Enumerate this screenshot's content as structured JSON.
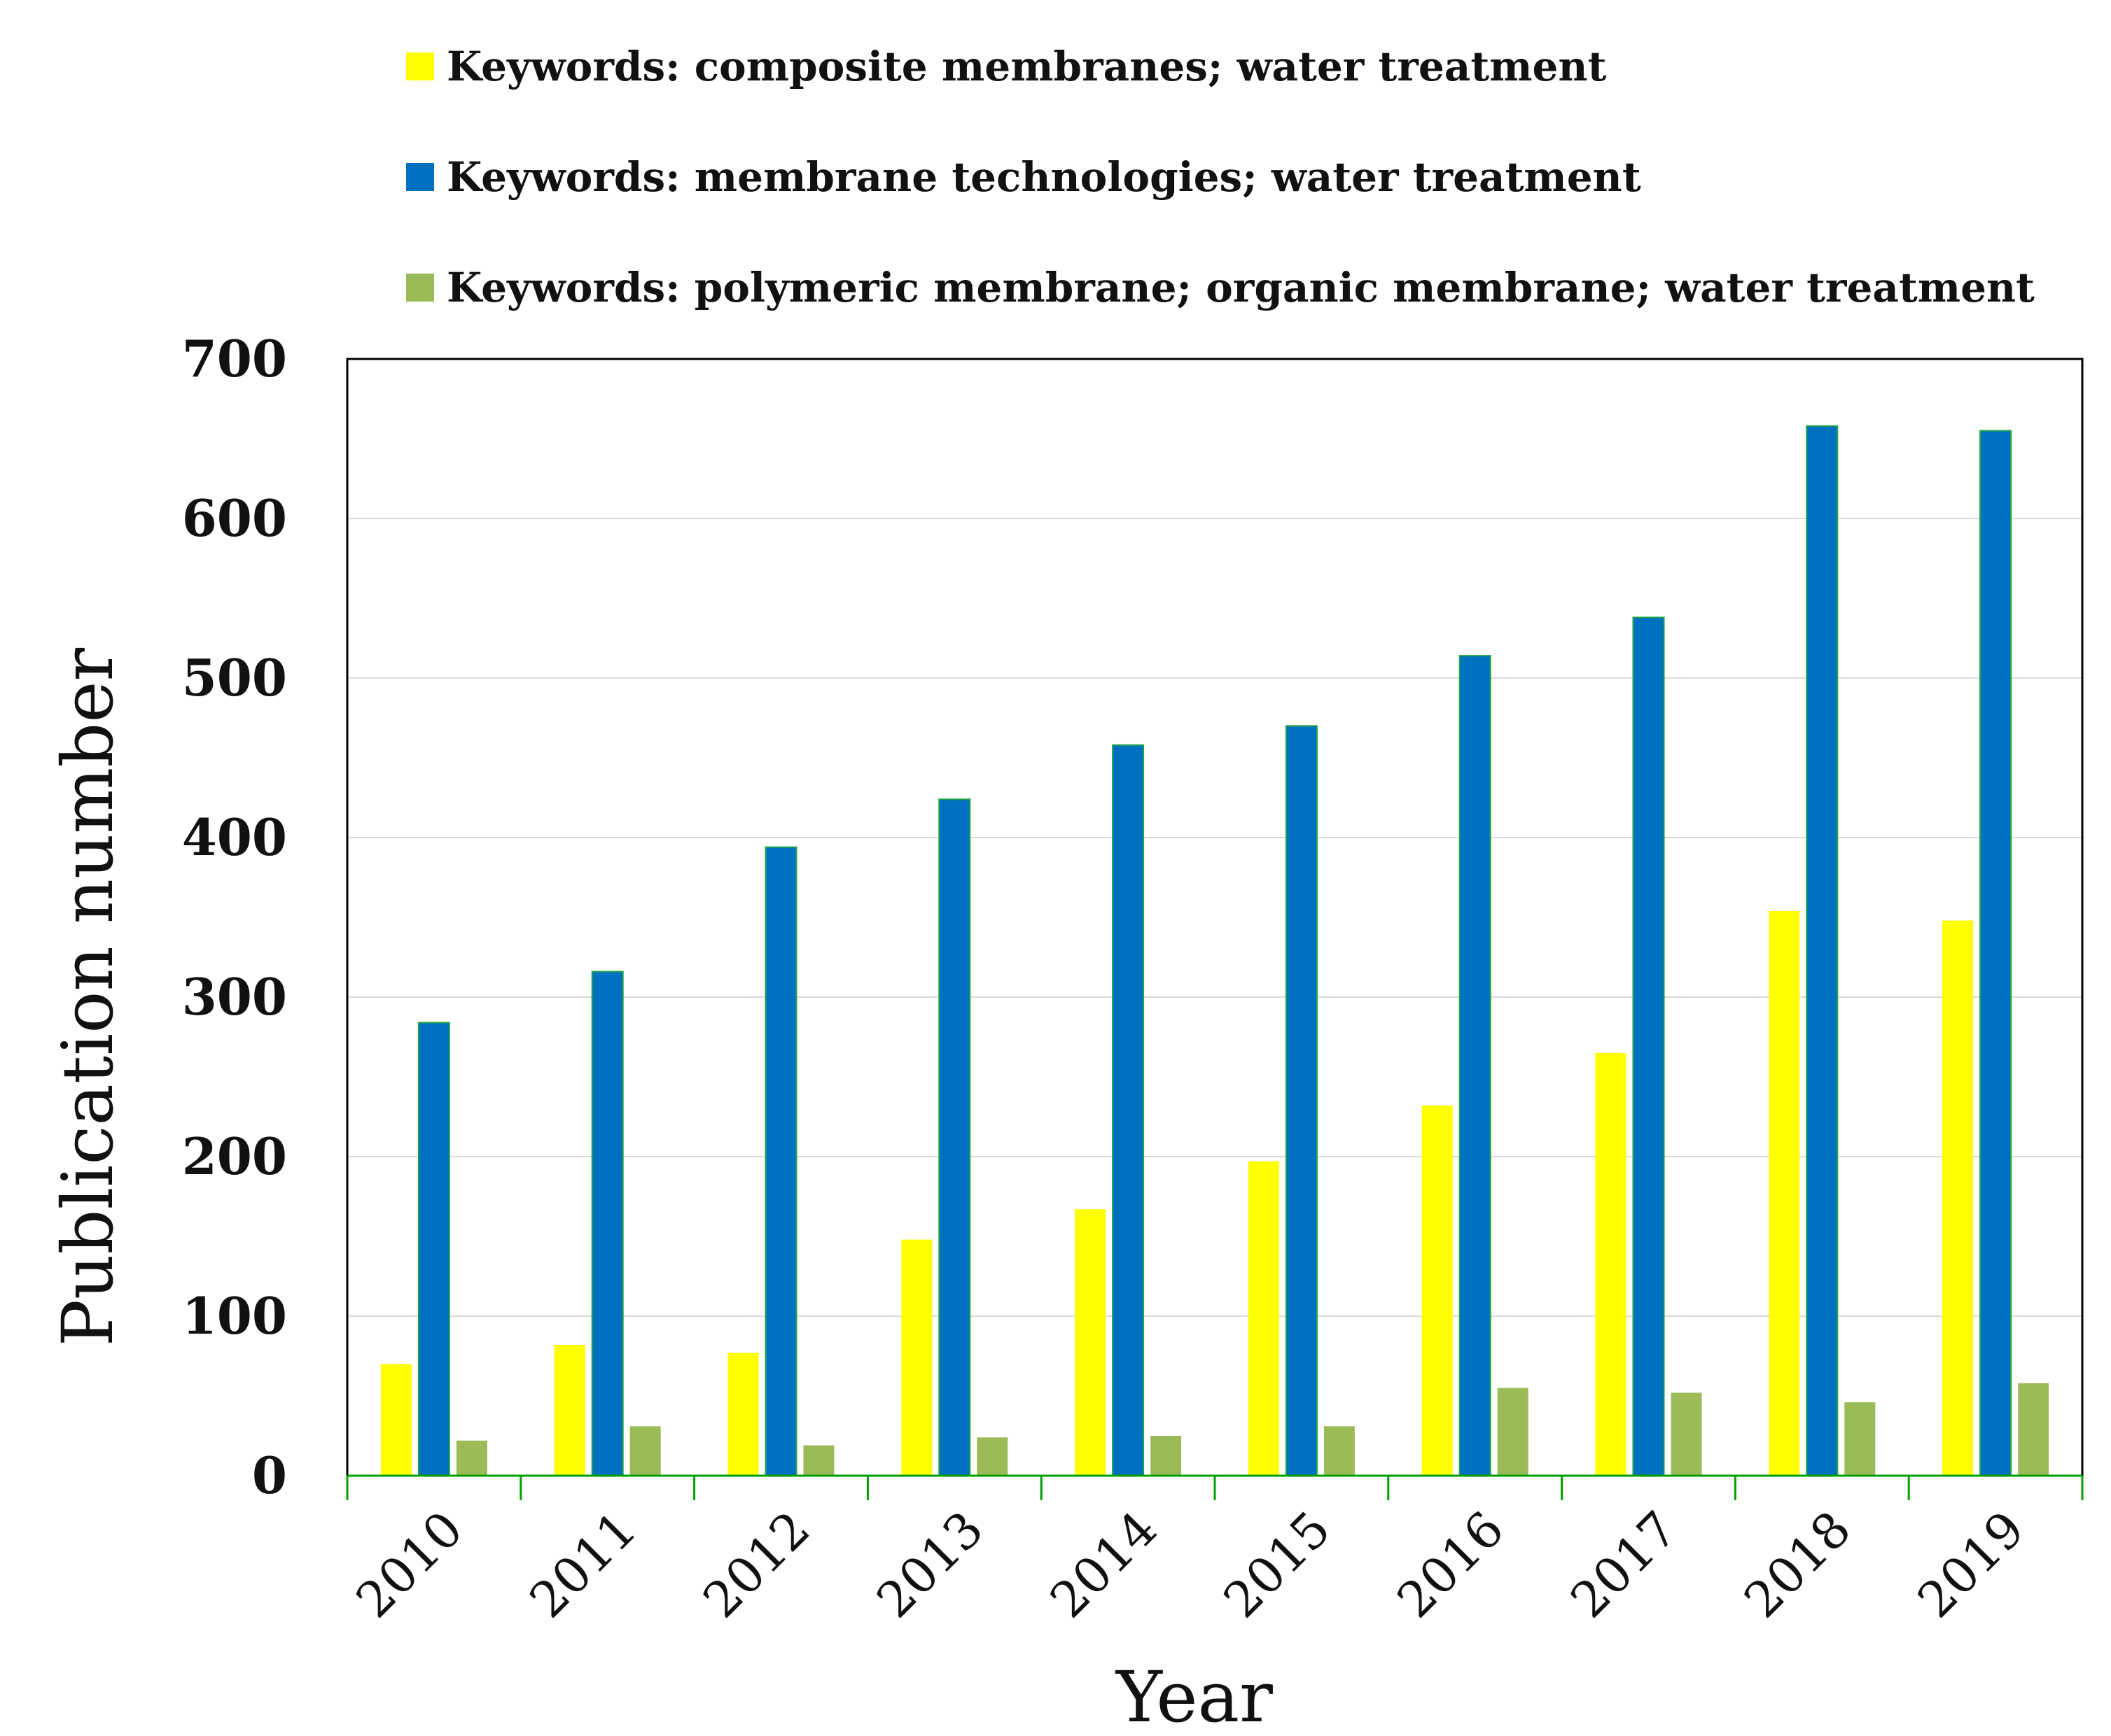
{
  "chart_data": {
    "type": "bar",
    "title": "",
    "xlabel": "Year",
    "ylabel": "Publication number",
    "categories": [
      "2010",
      "2011",
      "2012",
      "2013",
      "2014",
      "2015",
      "2016",
      "2017",
      "2018",
      "2019"
    ],
    "ylim": [
      0,
      700
    ],
    "yticks": [
      0,
      100,
      200,
      300,
      400,
      500,
      600,
      700
    ],
    "grid": true,
    "legend_position": "top",
    "series": [
      {
        "name": "Keywords: composite membranes; water treatment",
        "color": "#FFFF00",
        "values": [
          70,
          82,
          77,
          148,
          167,
          197,
          232,
          265,
          354,
          348
        ]
      },
      {
        "name": "Keywords: membrane technologies; water treatment",
        "color": "#0070C0",
        "values": [
          284,
          316,
          394,
          424,
          458,
          470,
          514,
          538,
          658,
          655
        ]
      },
      {
        "name": "Keywords: polymeric membrane; organic membrane; water treatment",
        "color": "#9BBB59",
        "values": [
          22,
          31,
          19,
          24,
          25,
          31,
          55,
          52,
          46,
          58
        ]
      }
    ]
  }
}
